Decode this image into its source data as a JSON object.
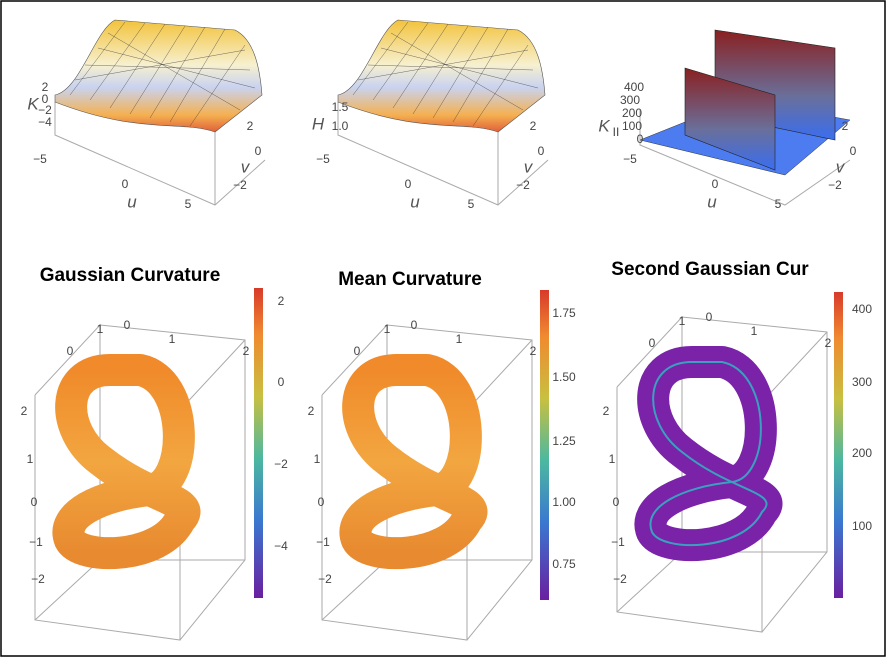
{
  "surface_plots": [
    {
      "z_label": "K",
      "z_ticks": [
        "2",
        "0",
        "−2",
        "−4"
      ],
      "u_label": "u",
      "u_ticks": [
        "−5",
        "0",
        "5"
      ],
      "v_label": "v",
      "v_ticks": [
        "2",
        "0",
        "−2"
      ]
    },
    {
      "z_label": "H",
      "z_ticks": [
        "1.5",
        "1.0"
      ],
      "u_label": "u",
      "u_ticks": [
        "−5",
        "0",
        "5"
      ],
      "v_label": "v",
      "v_ticks": [
        "2",
        "0",
        "−2"
      ]
    },
    {
      "z_label": "K",
      "z_label_sub": "II",
      "z_ticks": [
        "400",
        "300",
        "200",
        "100",
        "0"
      ],
      "u_label": "u",
      "u_ticks": [
        "−5",
        "0",
        "5"
      ],
      "v_label": "v",
      "v_ticks": [
        "2",
        "0",
        "−2"
      ]
    }
  ],
  "knot_plots": [
    {
      "title": "Gaussian Curvature",
      "top_ticks": [
        "1",
        "0"
      ],
      "mid_ticks": [
        "0",
        "1",
        "2"
      ],
      "left_ticks": [
        "2",
        "1",
        "0",
        "−1",
        "−2"
      ],
      "colorbar_ticks": [
        "2",
        "0",
        "−2",
        "−4"
      ]
    },
    {
      "title": "Mean Curvature",
      "top_ticks": [
        "1",
        "0"
      ],
      "mid_ticks": [
        "0",
        "1",
        "2"
      ],
      "left_ticks": [
        "2",
        "1",
        "0",
        "−1",
        "−2"
      ],
      "colorbar_ticks": [
        "1.75",
        "1.50",
        "1.25",
        "1.00",
        "0.75"
      ]
    },
    {
      "title": "Second Gaussian Cur",
      "top_ticks": [
        "1",
        "0"
      ],
      "mid_ticks": [
        "0",
        "1",
        "2"
      ],
      "left_ticks": [
        "2",
        "1",
        "0",
        "−1",
        "−2"
      ],
      "colorbar_ticks": [
        "400",
        "300",
        "200",
        "100"
      ]
    }
  ]
}
